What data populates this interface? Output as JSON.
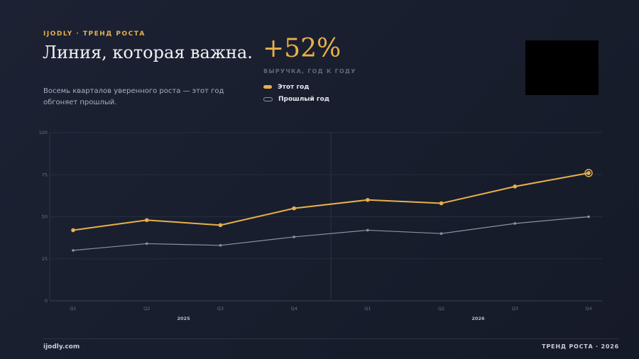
{
  "header": {
    "brand": "IJODLY · ТРЕНД РОСТА",
    "title": "Линия, которая важна.",
    "subtitle": "Восемь кварталов уверенного роста — этот год обгоняет прошлый."
  },
  "kpi": {
    "value": "+52%",
    "label": "ВЫРУЧКА, ГОД К ГОДУ"
  },
  "legend": {
    "items": [
      {
        "label": "Этот год"
      },
      {
        "label": "Прошлый год"
      }
    ]
  },
  "footer": {
    "left": "ijodly.com",
    "right": "ТРЕНД РОСТА · 2026"
  },
  "colors": {
    "accent": "#e8b04a",
    "secondary": "#8a92a3"
  },
  "chart_data": {
    "type": "line",
    "categories": [
      "Q1",
      "Q2",
      "Q3",
      "Q4",
      "Q1",
      "Q2",
      "Q3",
      "Q4"
    ],
    "groups": [
      {
        "label": "2025",
        "from": 0,
        "to": 3
      },
      {
        "label": "2026",
        "from": 4,
        "to": 7
      }
    ],
    "series": [
      {
        "name": "Этот год",
        "values": [
          42,
          48,
          45,
          55,
          60,
          58,
          68,
          76
        ],
        "color": "#e8b04a"
      },
      {
        "name": "Прошлый год",
        "values": [
          30,
          34,
          33,
          38,
          42,
          40,
          46,
          50
        ],
        "color": "#8a92a3"
      }
    ],
    "yticks": [
      0,
      25,
      50,
      75,
      100
    ],
    "ylim": [
      0,
      100
    ],
    "grid": true,
    "highlight_last": true
  }
}
